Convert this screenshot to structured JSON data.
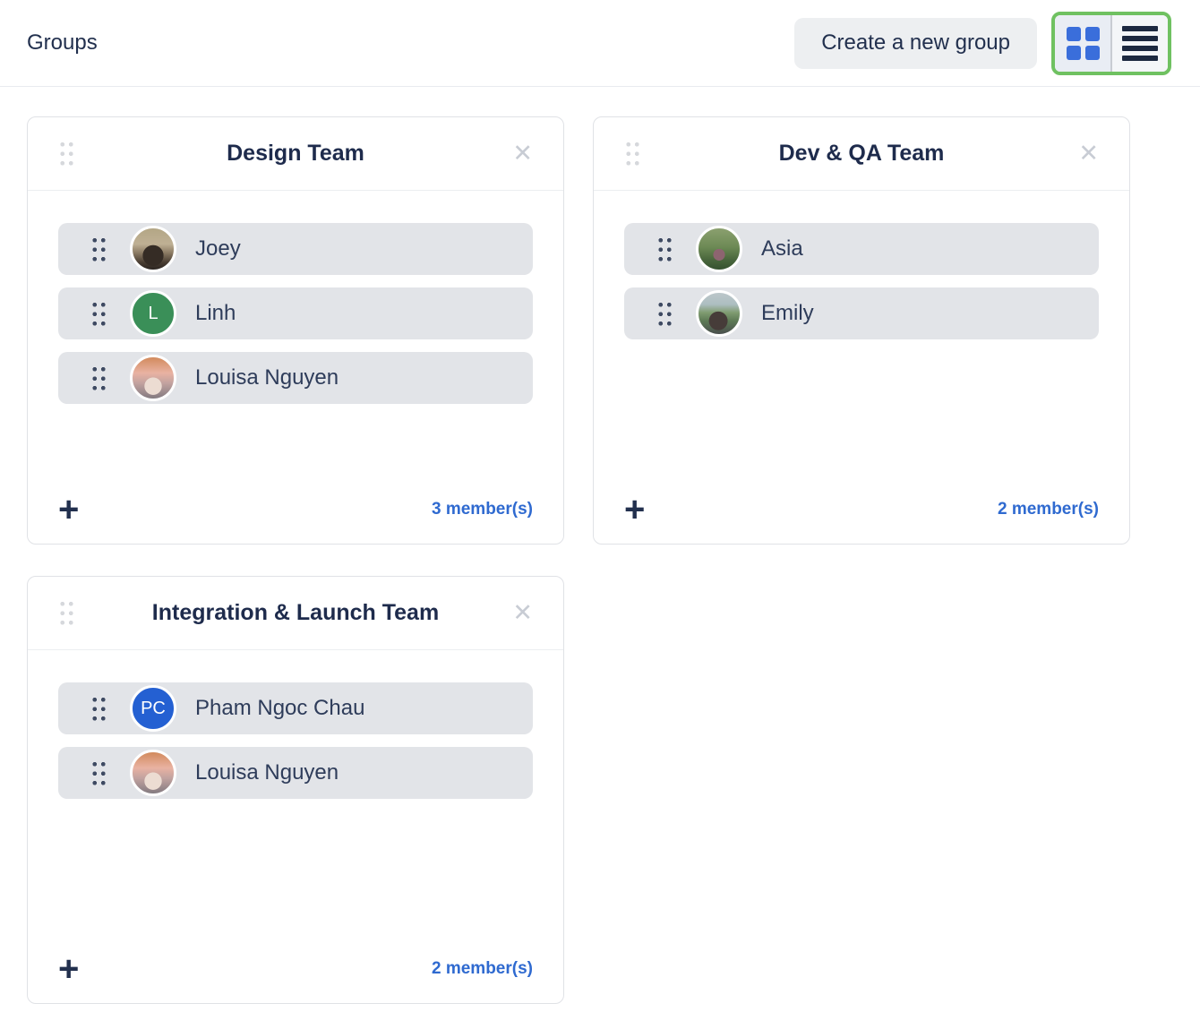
{
  "header": {
    "title": "Groups",
    "create_button_label": "Create a new group"
  },
  "view_toggle": {
    "active_view": "grid",
    "options": [
      "grid",
      "list"
    ],
    "highlight_color": "#6fc161",
    "grid_icon_color": "#3a6edb",
    "list_icon_color": "#1d2940"
  },
  "icons": {
    "close": "✕",
    "plus": "+",
    "drag_handle": "six-dot-grip"
  },
  "groups": [
    {
      "name": "Design Team",
      "member_count_label": "3 member(s)",
      "members": [
        {
          "name": "Joey",
          "avatar_kind": "photo",
          "avatar_style": "joey"
        },
        {
          "name": "Linh",
          "avatar_kind": "initials",
          "initials": "L",
          "avatar_color": "#3a8f58"
        },
        {
          "name": "Louisa Nguyen",
          "avatar_kind": "photo",
          "avatar_style": "louisa"
        }
      ]
    },
    {
      "name": "Dev & QA Team",
      "member_count_label": "2 member(s)",
      "members": [
        {
          "name": "Asia",
          "avatar_kind": "photo",
          "avatar_style": "asia"
        },
        {
          "name": "Emily",
          "avatar_kind": "photo",
          "avatar_style": "emily"
        }
      ]
    },
    {
      "name": "Integration & Launch Team",
      "member_count_label": "2 member(s)",
      "members": [
        {
          "name": "Pham Ngoc Chau",
          "avatar_kind": "initials",
          "initials": "PC",
          "avatar_color": "#2460d2"
        },
        {
          "name": "Louisa Nguyen",
          "avatar_kind": "photo",
          "avatar_style": "louisa"
        }
      ]
    }
  ],
  "colors": {
    "navy_text": "#1e2b4c",
    "accent_blue": "#2f6ad0",
    "row_background": "#e2e4e8",
    "button_background": "#edeff1",
    "toggle_highlight_green": "#6fc161"
  }
}
